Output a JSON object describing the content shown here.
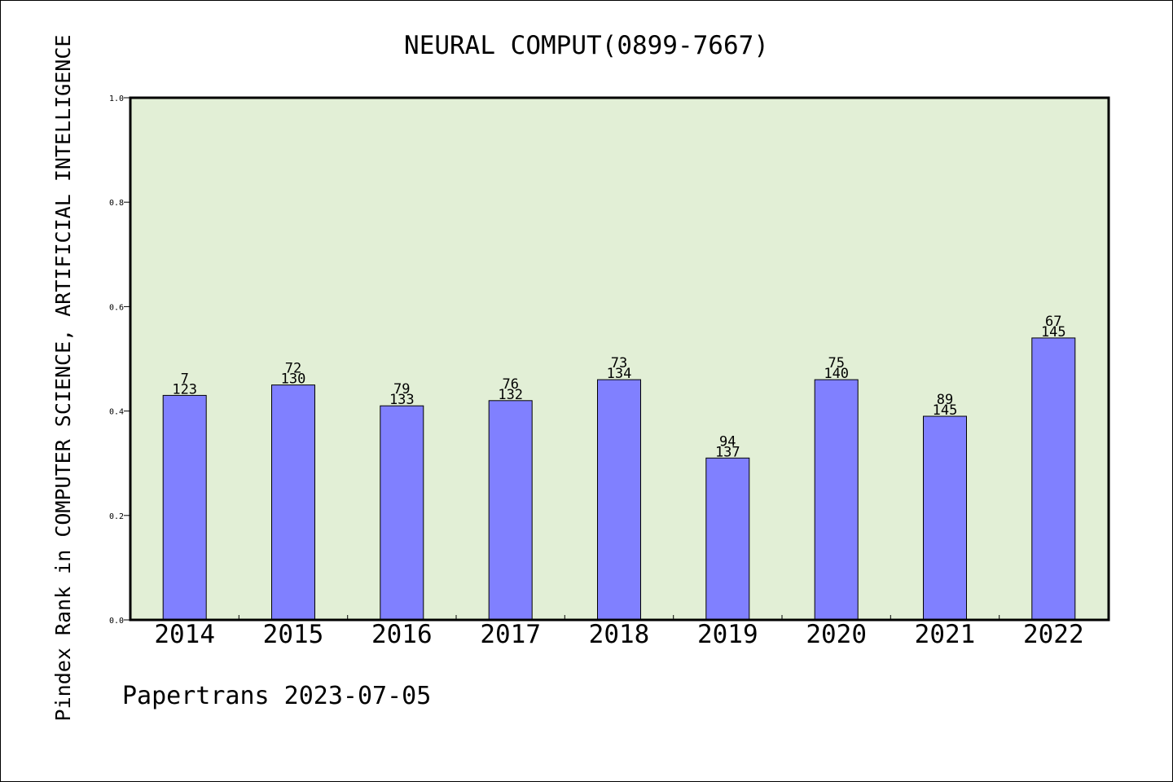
{
  "chart_data": {
    "type": "bar",
    "title": "NEURAL COMPUT(0899-7667)",
    "xlabel": "",
    "ylabel": "Pindex Rank in COMPUTER SCIENCE, ARTIFICIAL INTELLIGENCE",
    "categories": [
      "2014",
      "2015",
      "2016",
      "2017",
      "2018",
      "2019",
      "2020",
      "2021",
      "2022"
    ],
    "values": [
      0.43,
      0.45,
      0.41,
      0.42,
      0.46,
      0.31,
      0.46,
      0.39,
      0.54
    ],
    "rank": [
      "7",
      "72",
      "79",
      "76",
      "73",
      "94",
      "75",
      "89",
      "67"
    ],
    "total": [
      "123",
      "130",
      "133",
      "132",
      "134",
      "137",
      "140",
      "145",
      "145"
    ],
    "ylim": [
      0,
      1.0
    ],
    "yticks": [
      "0.0",
      "0.2",
      "0.4",
      "0.6",
      "0.8",
      "1.0"
    ],
    "grid": false,
    "colors": {
      "plot_background": "#e2efd6",
      "bar_fill": "#8080ff",
      "bar_stroke": "#000000"
    }
  },
  "footer": "Papertrans 2023-07-05"
}
